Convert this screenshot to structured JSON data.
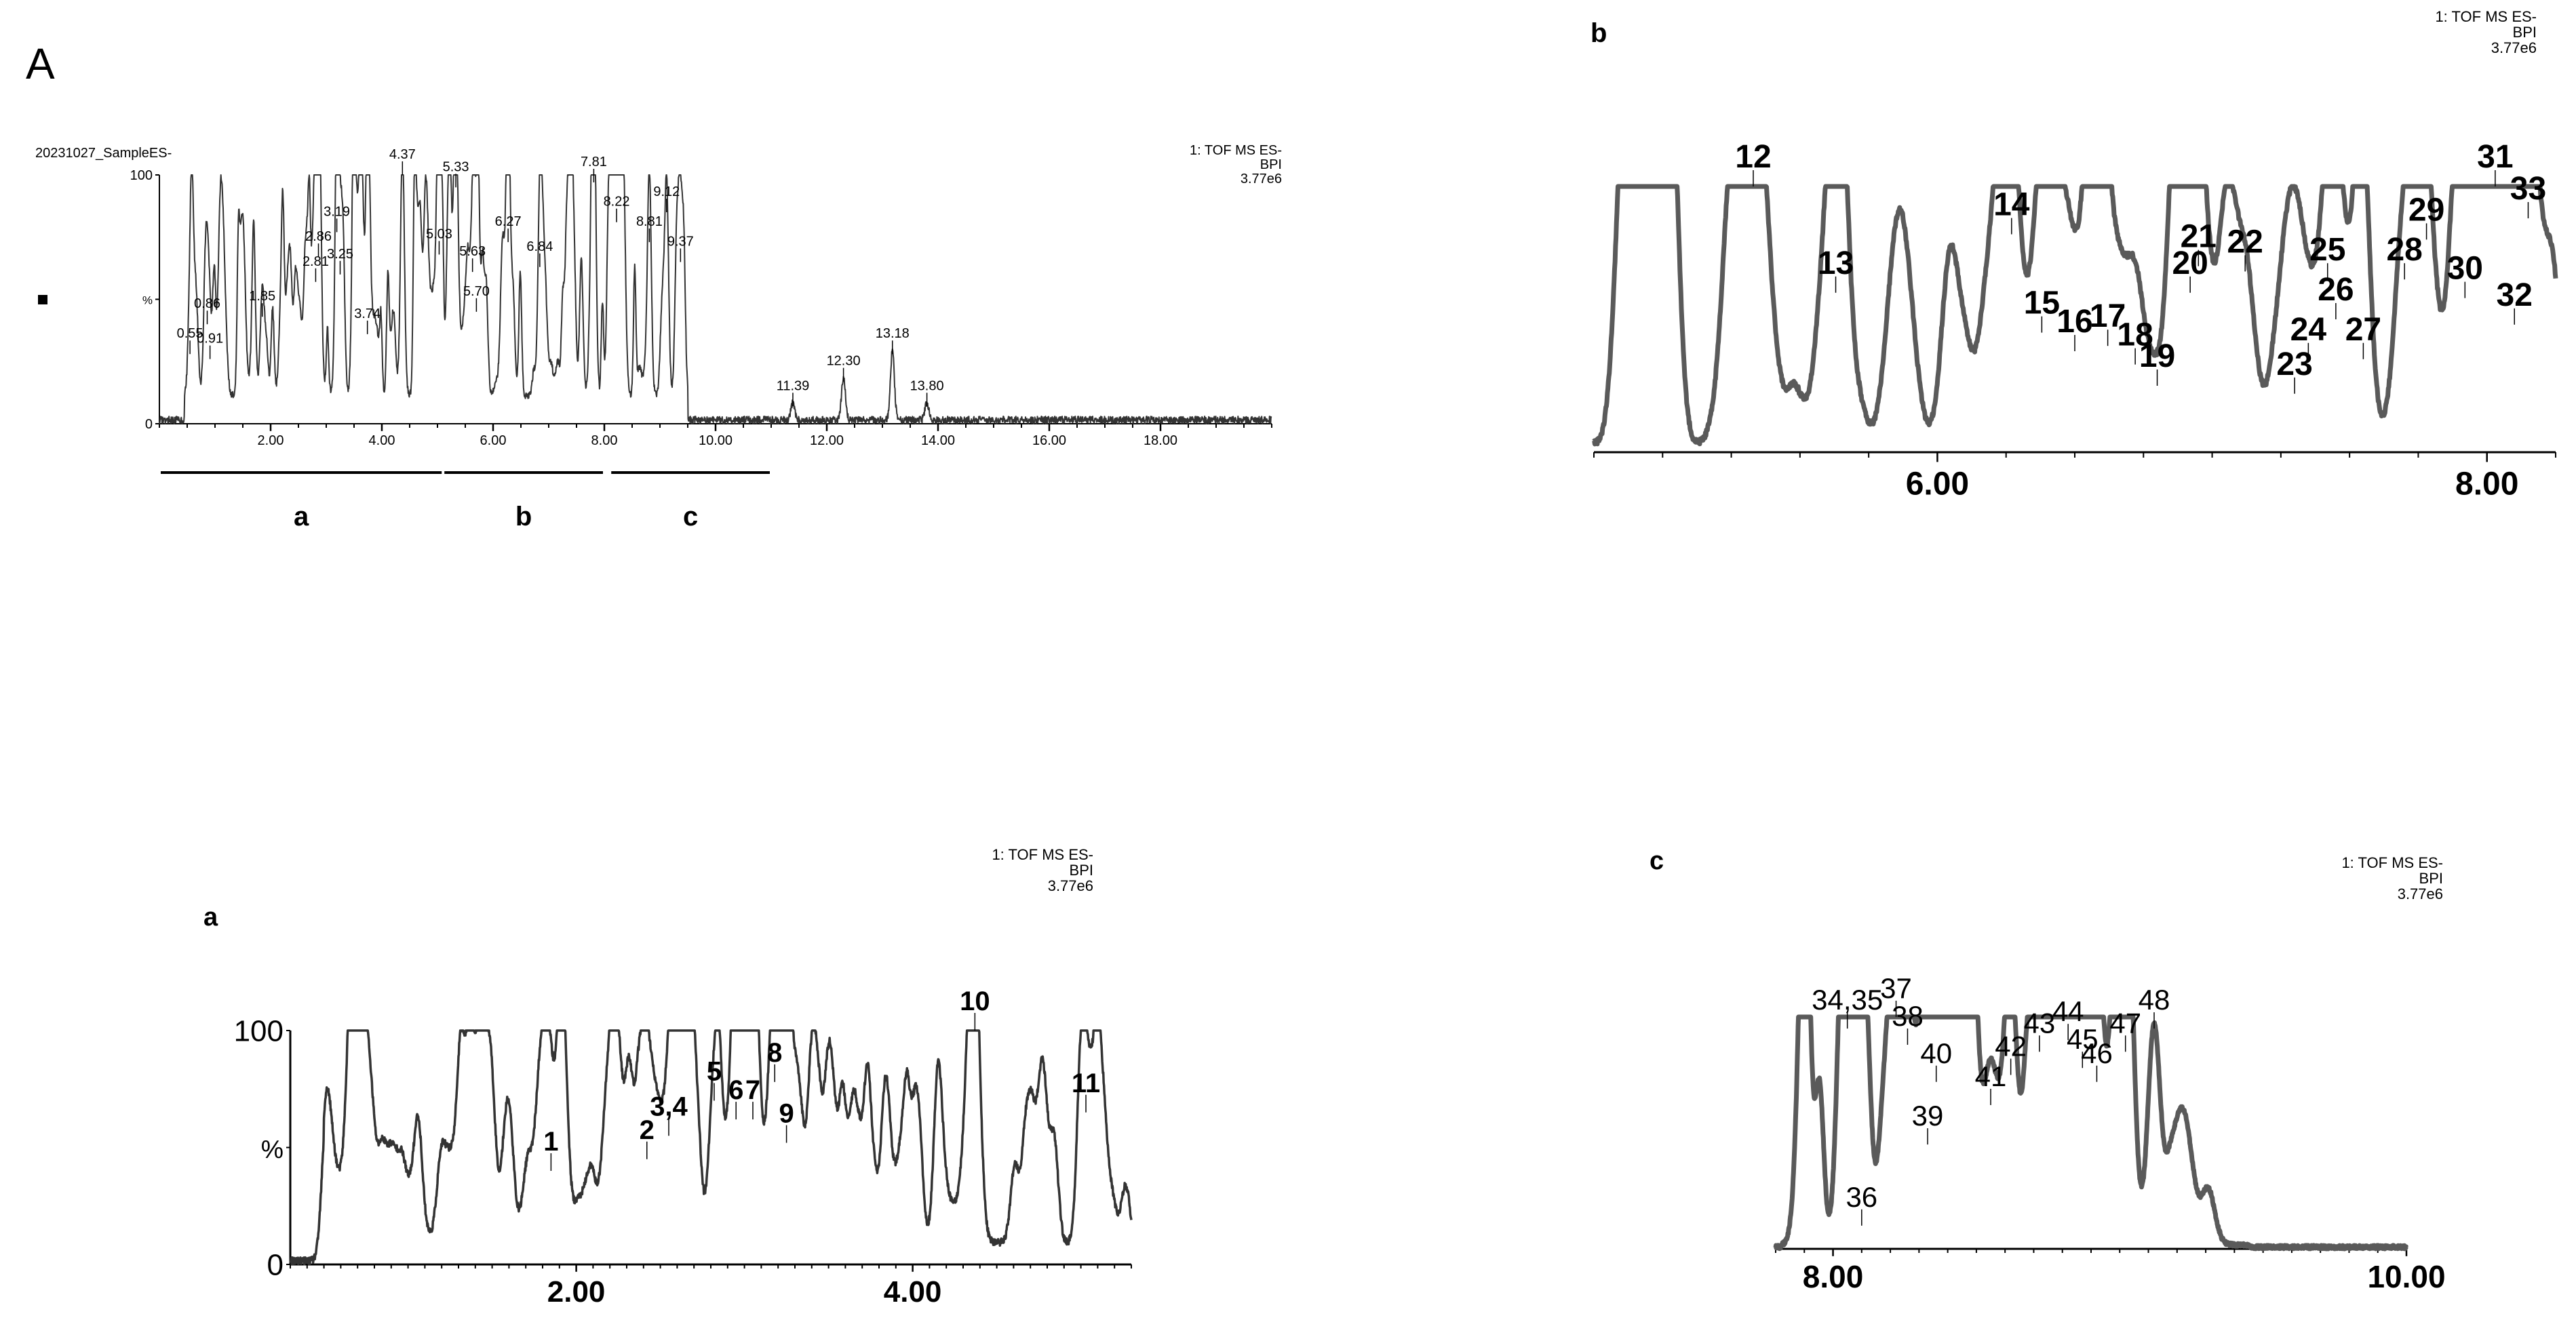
{
  "figure_label": "A",
  "overview": {
    "sample_name": "20231027_SampleES-",
    "header": [
      "1: TOF MS ES-",
      "BPI",
      "3.77e6"
    ],
    "y_ticks": [
      "100",
      "%",
      "0"
    ],
    "x_ticks": [
      "2.00",
      "4.00",
      "6.00",
      "8.00",
      "10.00",
      "12.00",
      "14.00",
      "16.00",
      "18.00"
    ],
    "segments": [
      "a",
      "b",
      "c"
    ]
  },
  "zoom_a": {
    "label": "a",
    "header": [
      "1: TOF MS ES-",
      "BPI",
      "3.77e6"
    ],
    "y_ticks": [
      "100",
      "%",
      "0"
    ],
    "x_ticks": [
      "2.00",
      "4.00"
    ]
  },
  "zoom_b": {
    "label": "b",
    "header": [
      "1: TOF MS ES-",
      "BPI",
      "3.77e6"
    ],
    "x_ticks": [
      "6.00",
      "8.00"
    ]
  },
  "zoom_c": {
    "label": "c",
    "header": [
      "1: TOF MS ES-",
      "BPI",
      "3.77e6"
    ],
    "x_ticks": [
      "8.00",
      "10.00"
    ]
  },
  "colors": {
    "trace": "#333333",
    "zoom_trace": "#5a5a5a",
    "axis": "#000000"
  },
  "chart_data": [
    {
      "type": "line",
      "panel": "overview",
      "title": "20231027_SampleES-",
      "xlabel": "",
      "ylabel": "%",
      "xlim": [
        0,
        20
      ],
      "ylim": [
        0,
        100
      ],
      "peak_labels": [
        {
          "x": 0.55,
          "y": 28,
          "label": "0.55"
        },
        {
          "x": 0.86,
          "y": 40,
          "label": "0.86"
        },
        {
          "x": 0.91,
          "y": 26,
          "label": "0.91"
        },
        {
          "x": 1.85,
          "y": 43,
          "label": "1.85"
        },
        {
          "x": 2.81,
          "y": 57,
          "label": "2.81"
        },
        {
          "x": 2.86,
          "y": 67,
          "label": "2.86"
        },
        {
          "x": 3.19,
          "y": 77,
          "label": "3.19"
        },
        {
          "x": 3.25,
          "y": 60,
          "label": "3.25"
        },
        {
          "x": 3.74,
          "y": 36,
          "label": "3.74"
        },
        {
          "x": 4.37,
          "y": 100,
          "label": "4.37"
        },
        {
          "x": 5.03,
          "y": 68,
          "label": "5.03"
        },
        {
          "x": 5.33,
          "y": 95,
          "label": "5.33"
        },
        {
          "x": 5.63,
          "y": 61,
          "label": "5.63"
        },
        {
          "x": 5.7,
          "y": 45,
          "label": "5.70"
        },
        {
          "x": 6.27,
          "y": 73,
          "label": "6.27"
        },
        {
          "x": 6.84,
          "y": 63,
          "label": "6.84"
        },
        {
          "x": 7.81,
          "y": 97,
          "label": "7.81"
        },
        {
          "x": 8.22,
          "y": 81,
          "label": "8.22"
        },
        {
          "x": 8.81,
          "y": 73,
          "label": "8.81"
        },
        {
          "x": 9.12,
          "y": 85,
          "label": "9.12"
        },
        {
          "x": 9.37,
          "y": 65,
          "label": "9.37"
        },
        {
          "x": 11.39,
          "y": 7,
          "label": "11.39"
        },
        {
          "x": 12.3,
          "y": 17,
          "label": "12.30"
        },
        {
          "x": 13.18,
          "y": 28,
          "label": "13.18"
        },
        {
          "x": 13.8,
          "y": 7,
          "label": "13.80"
        }
      ],
      "segments": [
        {
          "label": "a",
          "x": [
            0,
            5.1
          ]
        },
        {
          "label": "b",
          "x": [
            5.1,
            8.0
          ]
        },
        {
          "label": "c",
          "x": [
            8.1,
            11.0
          ]
        }
      ]
    },
    {
      "type": "line",
      "panel": "a",
      "xlim": [
        0.3,
        5.3
      ],
      "ylim": [
        0,
        100
      ],
      "peak_labels": [
        {
          "x": 1.85,
          "y": 40,
          "label": "1"
        },
        {
          "x": 2.42,
          "y": 45,
          "label": "2"
        },
        {
          "x": 2.55,
          "y": 55,
          "label": "3,4"
        },
        {
          "x": 2.82,
          "y": 70,
          "label": "5"
        },
        {
          "x": 2.95,
          "y": 62,
          "label": "6"
        },
        {
          "x": 3.05,
          "y": 62,
          "label": "7"
        },
        {
          "x": 3.18,
          "y": 78,
          "label": "8"
        },
        {
          "x": 3.25,
          "y": 52,
          "label": "9"
        },
        {
          "x": 4.37,
          "y": 100,
          "label": "10"
        },
        {
          "x": 5.03,
          "y": 65,
          "label": "11"
        }
      ]
    },
    {
      "type": "line",
      "panel": "b",
      "xlim": [
        4.75,
        8.25
      ],
      "ylim": [
        0,
        100
      ],
      "peak_labels": [
        {
          "x": 5.33,
          "y": 100,
          "label": "12"
        },
        {
          "x": 5.63,
          "y": 60,
          "label": "13"
        },
        {
          "x": 6.27,
          "y": 82,
          "label": "14"
        },
        {
          "x": 6.38,
          "y": 45,
          "label": "15"
        },
        {
          "x": 6.5,
          "y": 38,
          "label": "16"
        },
        {
          "x": 6.62,
          "y": 40,
          "label": "17"
        },
        {
          "x": 6.72,
          "y": 33,
          "label": "18"
        },
        {
          "x": 6.8,
          "y": 25,
          "label": "19"
        },
        {
          "x": 6.92,
          "y": 60,
          "label": "20"
        },
        {
          "x": 6.95,
          "y": 70,
          "label": "21"
        },
        {
          "x": 7.12,
          "y": 68,
          "label": "22"
        },
        {
          "x": 7.3,
          "y": 22,
          "label": "23"
        },
        {
          "x": 7.35,
          "y": 35,
          "label": "24"
        },
        {
          "x": 7.42,
          "y": 65,
          "label": "25"
        },
        {
          "x": 7.45,
          "y": 50,
          "label": "26"
        },
        {
          "x": 7.55,
          "y": 35,
          "label": "27"
        },
        {
          "x": 7.7,
          "y": 65,
          "label": "28"
        },
        {
          "x": 7.78,
          "y": 80,
          "label": "29"
        },
        {
          "x": 7.92,
          "y": 58,
          "label": "30"
        },
        {
          "x": 8.03,
          "y": 100,
          "label": "31"
        },
        {
          "x": 8.1,
          "y": 48,
          "label": "32"
        },
        {
          "x": 8.15,
          "y": 88,
          "label": "33"
        }
      ]
    },
    {
      "type": "line",
      "panel": "c",
      "xlim": [
        7.8,
        10.0
      ],
      "ylim": [
        0,
        100
      ],
      "peak_labels": [
        {
          "x": 8.05,
          "y": 95,
          "label": "34,35"
        },
        {
          "x": 8.1,
          "y": 10,
          "label": "36"
        },
        {
          "x": 8.22,
          "y": 100,
          "label": "37"
        },
        {
          "x": 8.26,
          "y": 88,
          "label": "38"
        },
        {
          "x": 8.33,
          "y": 45,
          "label": "39"
        },
        {
          "x": 8.36,
          "y": 72,
          "label": "40"
        },
        {
          "x": 8.55,
          "y": 62,
          "label": "41"
        },
        {
          "x": 8.62,
          "y": 75,
          "label": "42"
        },
        {
          "x": 8.72,
          "y": 85,
          "label": "43"
        },
        {
          "x": 8.82,
          "y": 90,
          "label": "44"
        },
        {
          "x": 8.87,
          "y": 78,
          "label": "45"
        },
        {
          "x": 8.92,
          "y": 72,
          "label": "46"
        },
        {
          "x": 9.02,
          "y": 85,
          "label": "47"
        },
        {
          "x": 9.12,
          "y": 95,
          "label": "48"
        }
      ]
    }
  ]
}
